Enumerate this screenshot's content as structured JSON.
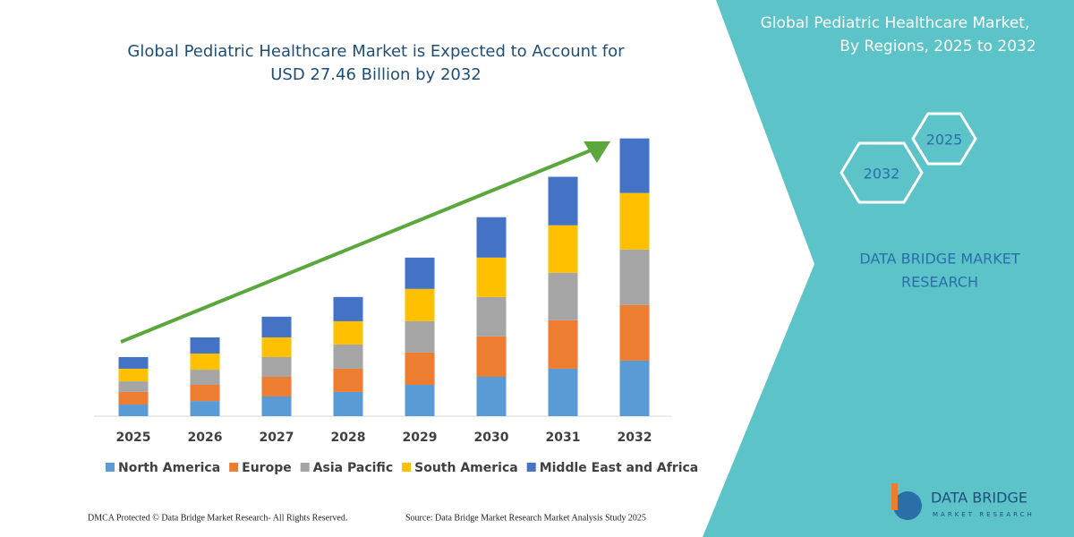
{
  "chart_data": {
    "type": "stacked-bar",
    "title": [
      "Global Pediatric Healthcare Market is Expected to Account for",
      "USD 27.46 Billion by 2032"
    ],
    "categories": [
      "2025",
      "2026",
      "2027",
      "2028",
      "2029",
      "2030",
      "2031",
      "2032"
    ],
    "series": [
      {
        "name": "North America",
        "color": "#5b9bd5",
        "values": [
          1.15,
          1.5,
          1.95,
          2.4,
          3.1,
          3.9,
          4.7,
          5.5
        ]
      },
      {
        "name": "Europe",
        "color": "#ed7d31",
        "values": [
          1.25,
          1.6,
          1.95,
          2.3,
          3.2,
          4.0,
          4.8,
          5.5
        ]
      },
      {
        "name": "Asia Pacific",
        "color": "#a5a5a5",
        "values": [
          1.05,
          1.5,
          1.95,
          2.4,
          3.1,
          3.9,
          4.7,
          5.5
        ]
      },
      {
        "name": "South America",
        "color": "#ffc000",
        "values": [
          1.25,
          1.6,
          1.95,
          2.3,
          3.2,
          3.9,
          4.7,
          5.6
        ]
      },
      {
        "name": "Middle East and Africa",
        "color": "#4472c4",
        "values": [
          1.15,
          1.6,
          2.05,
          2.4,
          3.1,
          4.0,
          4.8,
          5.4
        ]
      }
    ],
    "ylim": [
      0,
      28
    ]
  },
  "side_panel": {
    "title": [
      "Global Pediatric Healthcare Market,",
      "By Regions, 2025 to 2032"
    ],
    "hexagons": [
      "2025",
      "2032"
    ],
    "brand": [
      "DATA BRIDGE MARKET",
      "RESEARCH"
    ]
  },
  "footer": {
    "left": "DMCA Protected © Data Bridge Market Research-  All Rights Reserved.",
    "right": "Source: Data Bridge Market Research  Market Analysis Study 2025"
  },
  "logo": {
    "name": "DATA BRIDGE",
    "tagline": "MARKET RESEARCH"
  }
}
